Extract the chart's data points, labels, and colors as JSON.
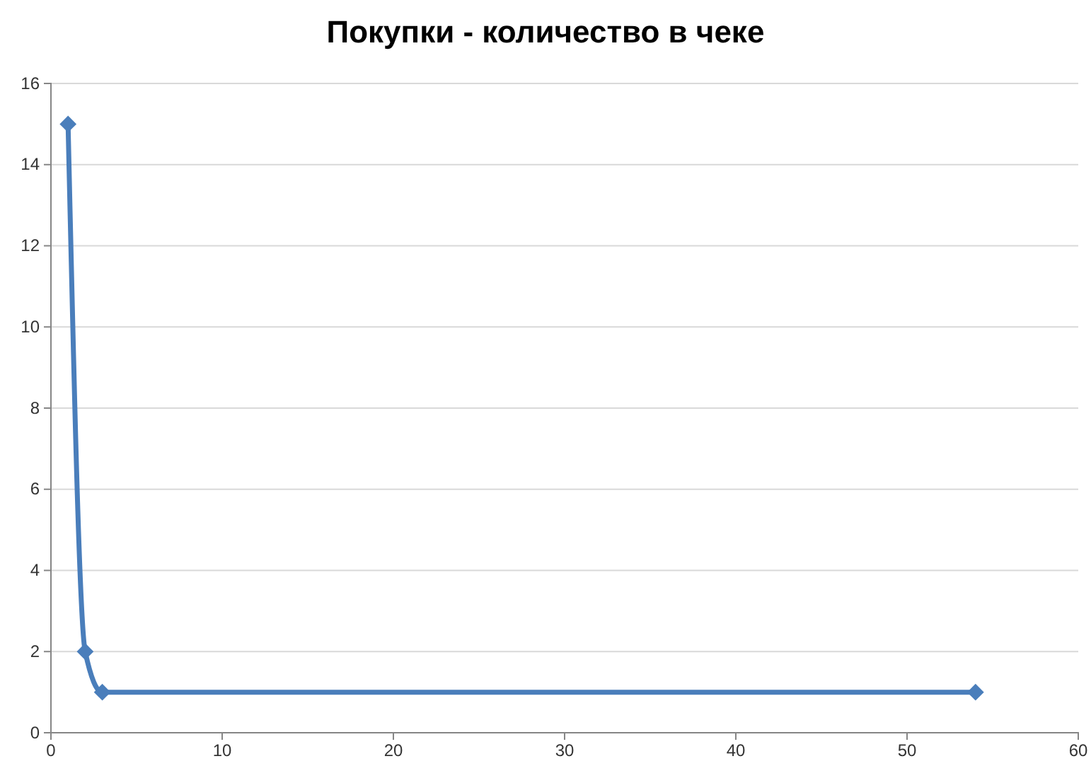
{
  "chart_data": {
    "type": "line",
    "title": "Покупки - количество в чеке",
    "x": [
      1,
      2,
      3,
      54
    ],
    "series": [
      {
        "color": "#4a7ebb",
        "values": [
          15,
          2,
          1,
          1
        ]
      }
    ],
    "xlim": [
      0,
      60
    ],
    "xticks": [
      0,
      10,
      20,
      30,
      40,
      50,
      60
    ],
    "ylim": [
      0,
      16
    ],
    "yticks": [
      0,
      2,
      4,
      6,
      8,
      10,
      12,
      14,
      16
    ],
    "grid": "y",
    "marker": "diamond",
    "line_style": "solid"
  }
}
